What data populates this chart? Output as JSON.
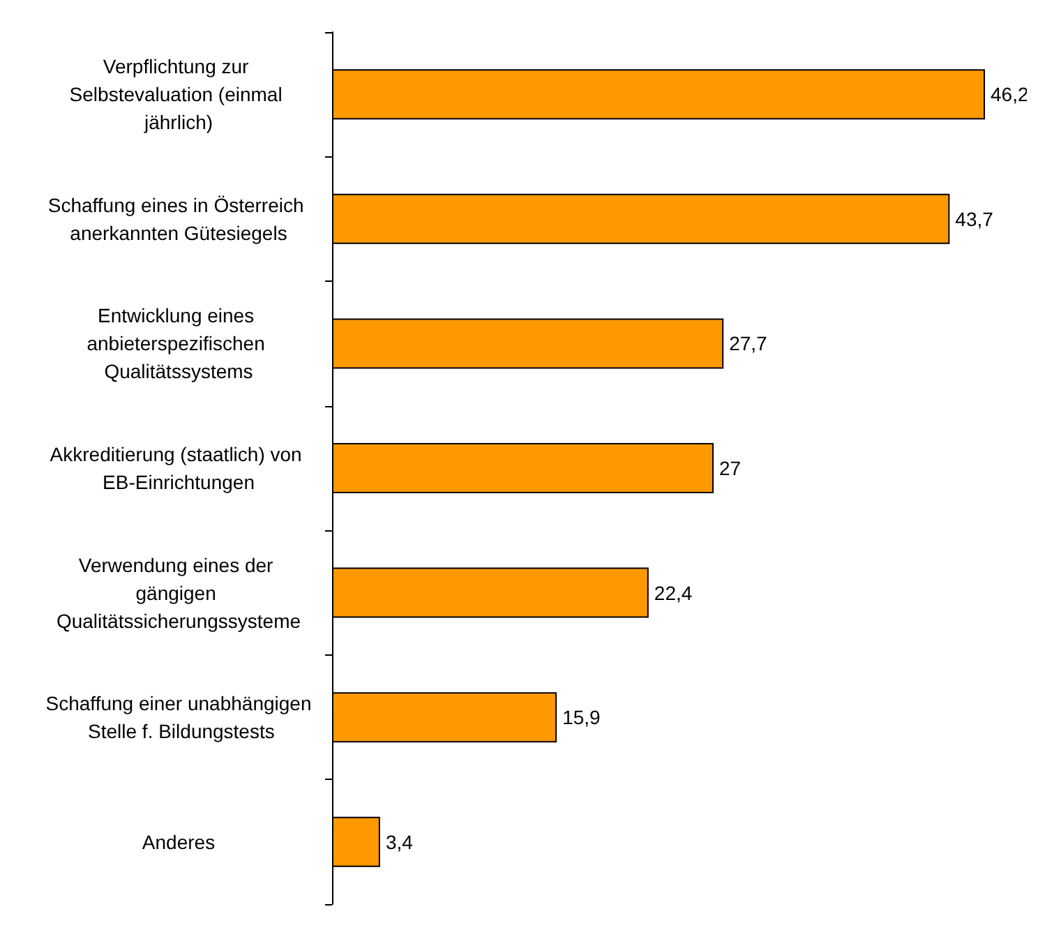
{
  "chart_data": {
    "type": "bar",
    "orientation": "horizontal",
    "categories": [
      "Verpflichtung zur Selbstevaluation (einmal jährlich)",
      "Schaffung eines in Österreich anerkannten Gütesiegels",
      "Entwicklung eines anbieterspezifischen Qualitätssystems",
      "Akkreditierung (staatlich) von EB-Einrichtungen",
      "Verwendung eines der gängigen Qualitätssicherungssysteme",
      "Schaffung einer unabhängigen Stelle f. Bildungstests",
      "Anderes"
    ],
    "values": [
      46.2,
      43.7,
      27.7,
      27,
      22.4,
      15.9,
      3.4
    ],
    "value_labels": [
      "46,2",
      "43,7",
      "27,7",
      "27",
      "22,4",
      "15,9",
      "3,4"
    ],
    "color": "#ff9900"
  }
}
